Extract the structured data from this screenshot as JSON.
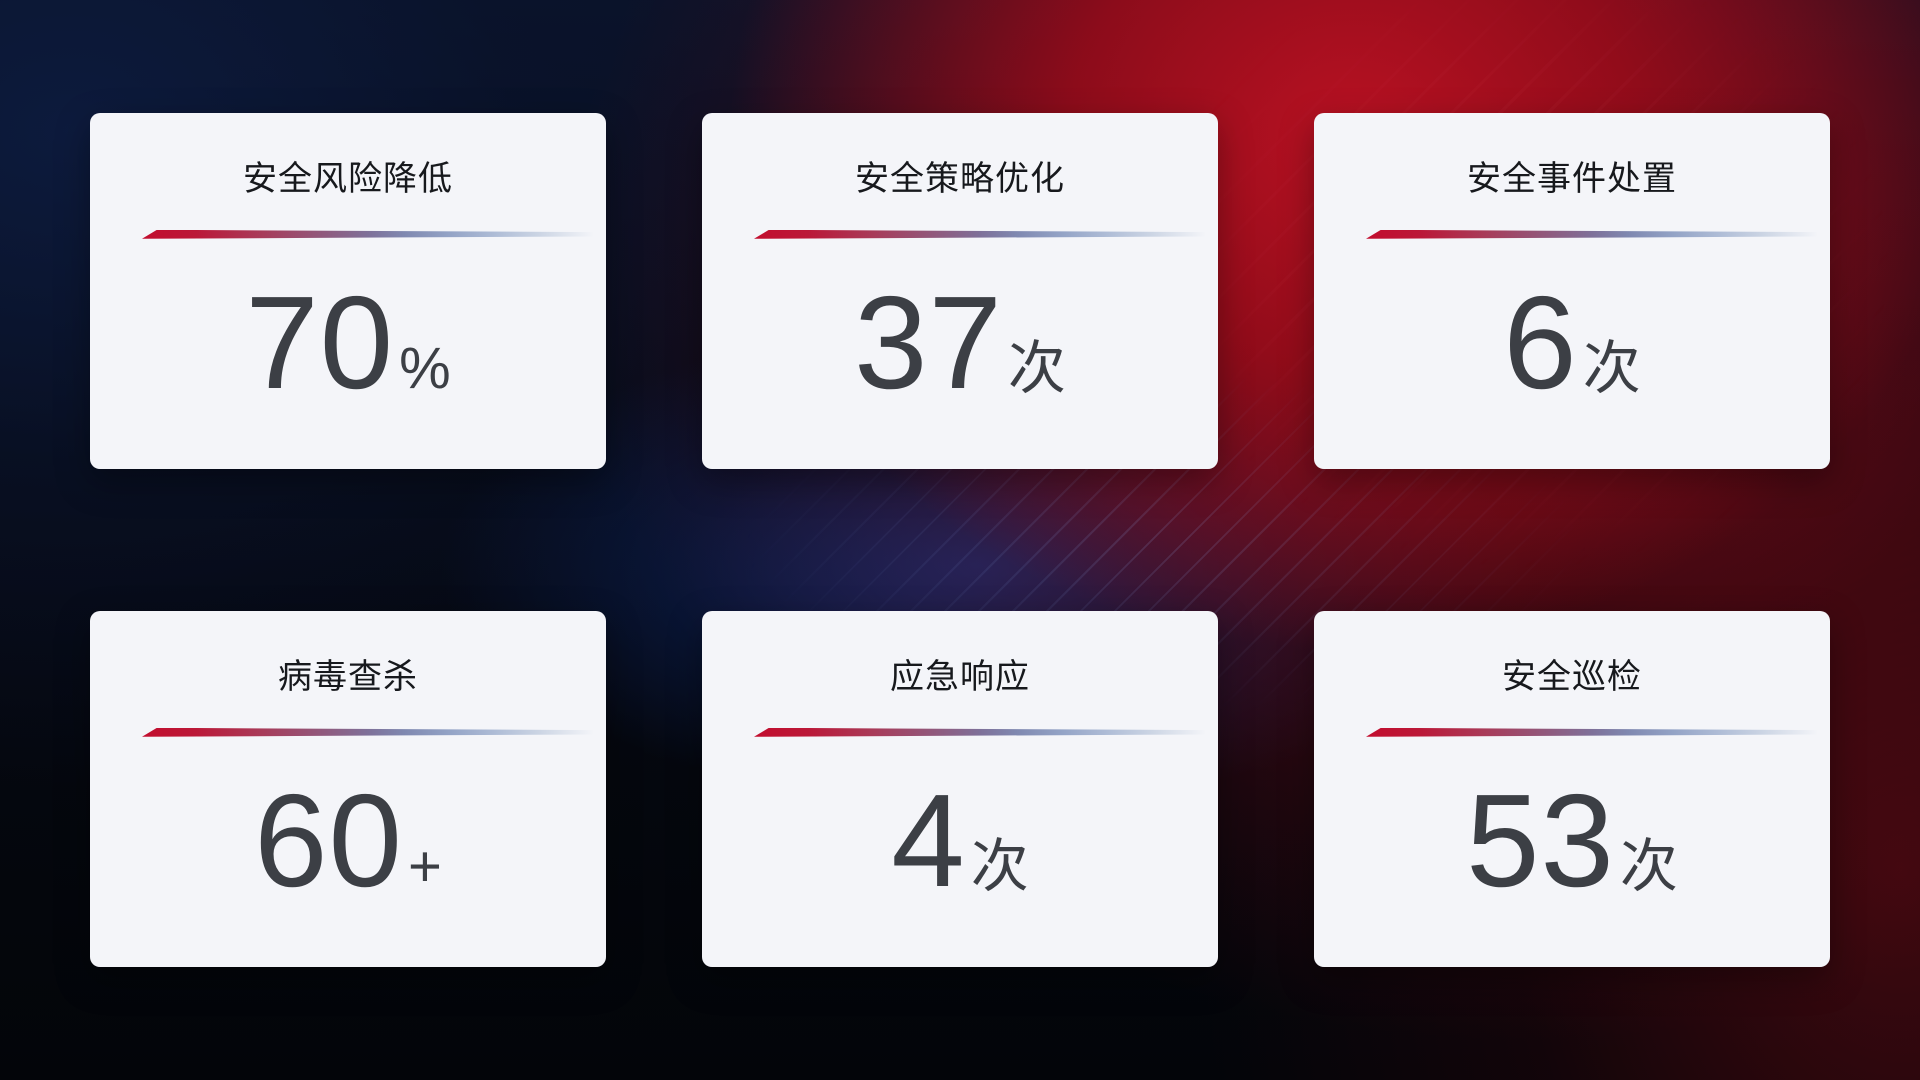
{
  "page": {
    "description": "安全运营数据统计看板",
    "colors": {
      "background_base": "#04050b",
      "background_red_glow": "#a60d1c",
      "background_navy_glow": "#0d2a6e",
      "card_background": "#f4f5f9",
      "title_text": "#17191d",
      "value_text": "#3c3f45",
      "divider_red": "#c20d2e",
      "divider_blue": "#aebcd6"
    }
  },
  "cards": [
    {
      "title": "安全风险降低",
      "value": "70",
      "unit": "%"
    },
    {
      "title": "安全策略优化",
      "value": "37",
      "unit": "次"
    },
    {
      "title": "安全事件处置",
      "value": "6",
      "unit": "次"
    },
    {
      "title": "病毒查杀",
      "value": "60",
      "unit": "+"
    },
    {
      "title": "应急响应",
      "value": "4",
      "unit": "次"
    },
    {
      "title": "安全巡检",
      "value": "53",
      "unit": "次"
    }
  ]
}
